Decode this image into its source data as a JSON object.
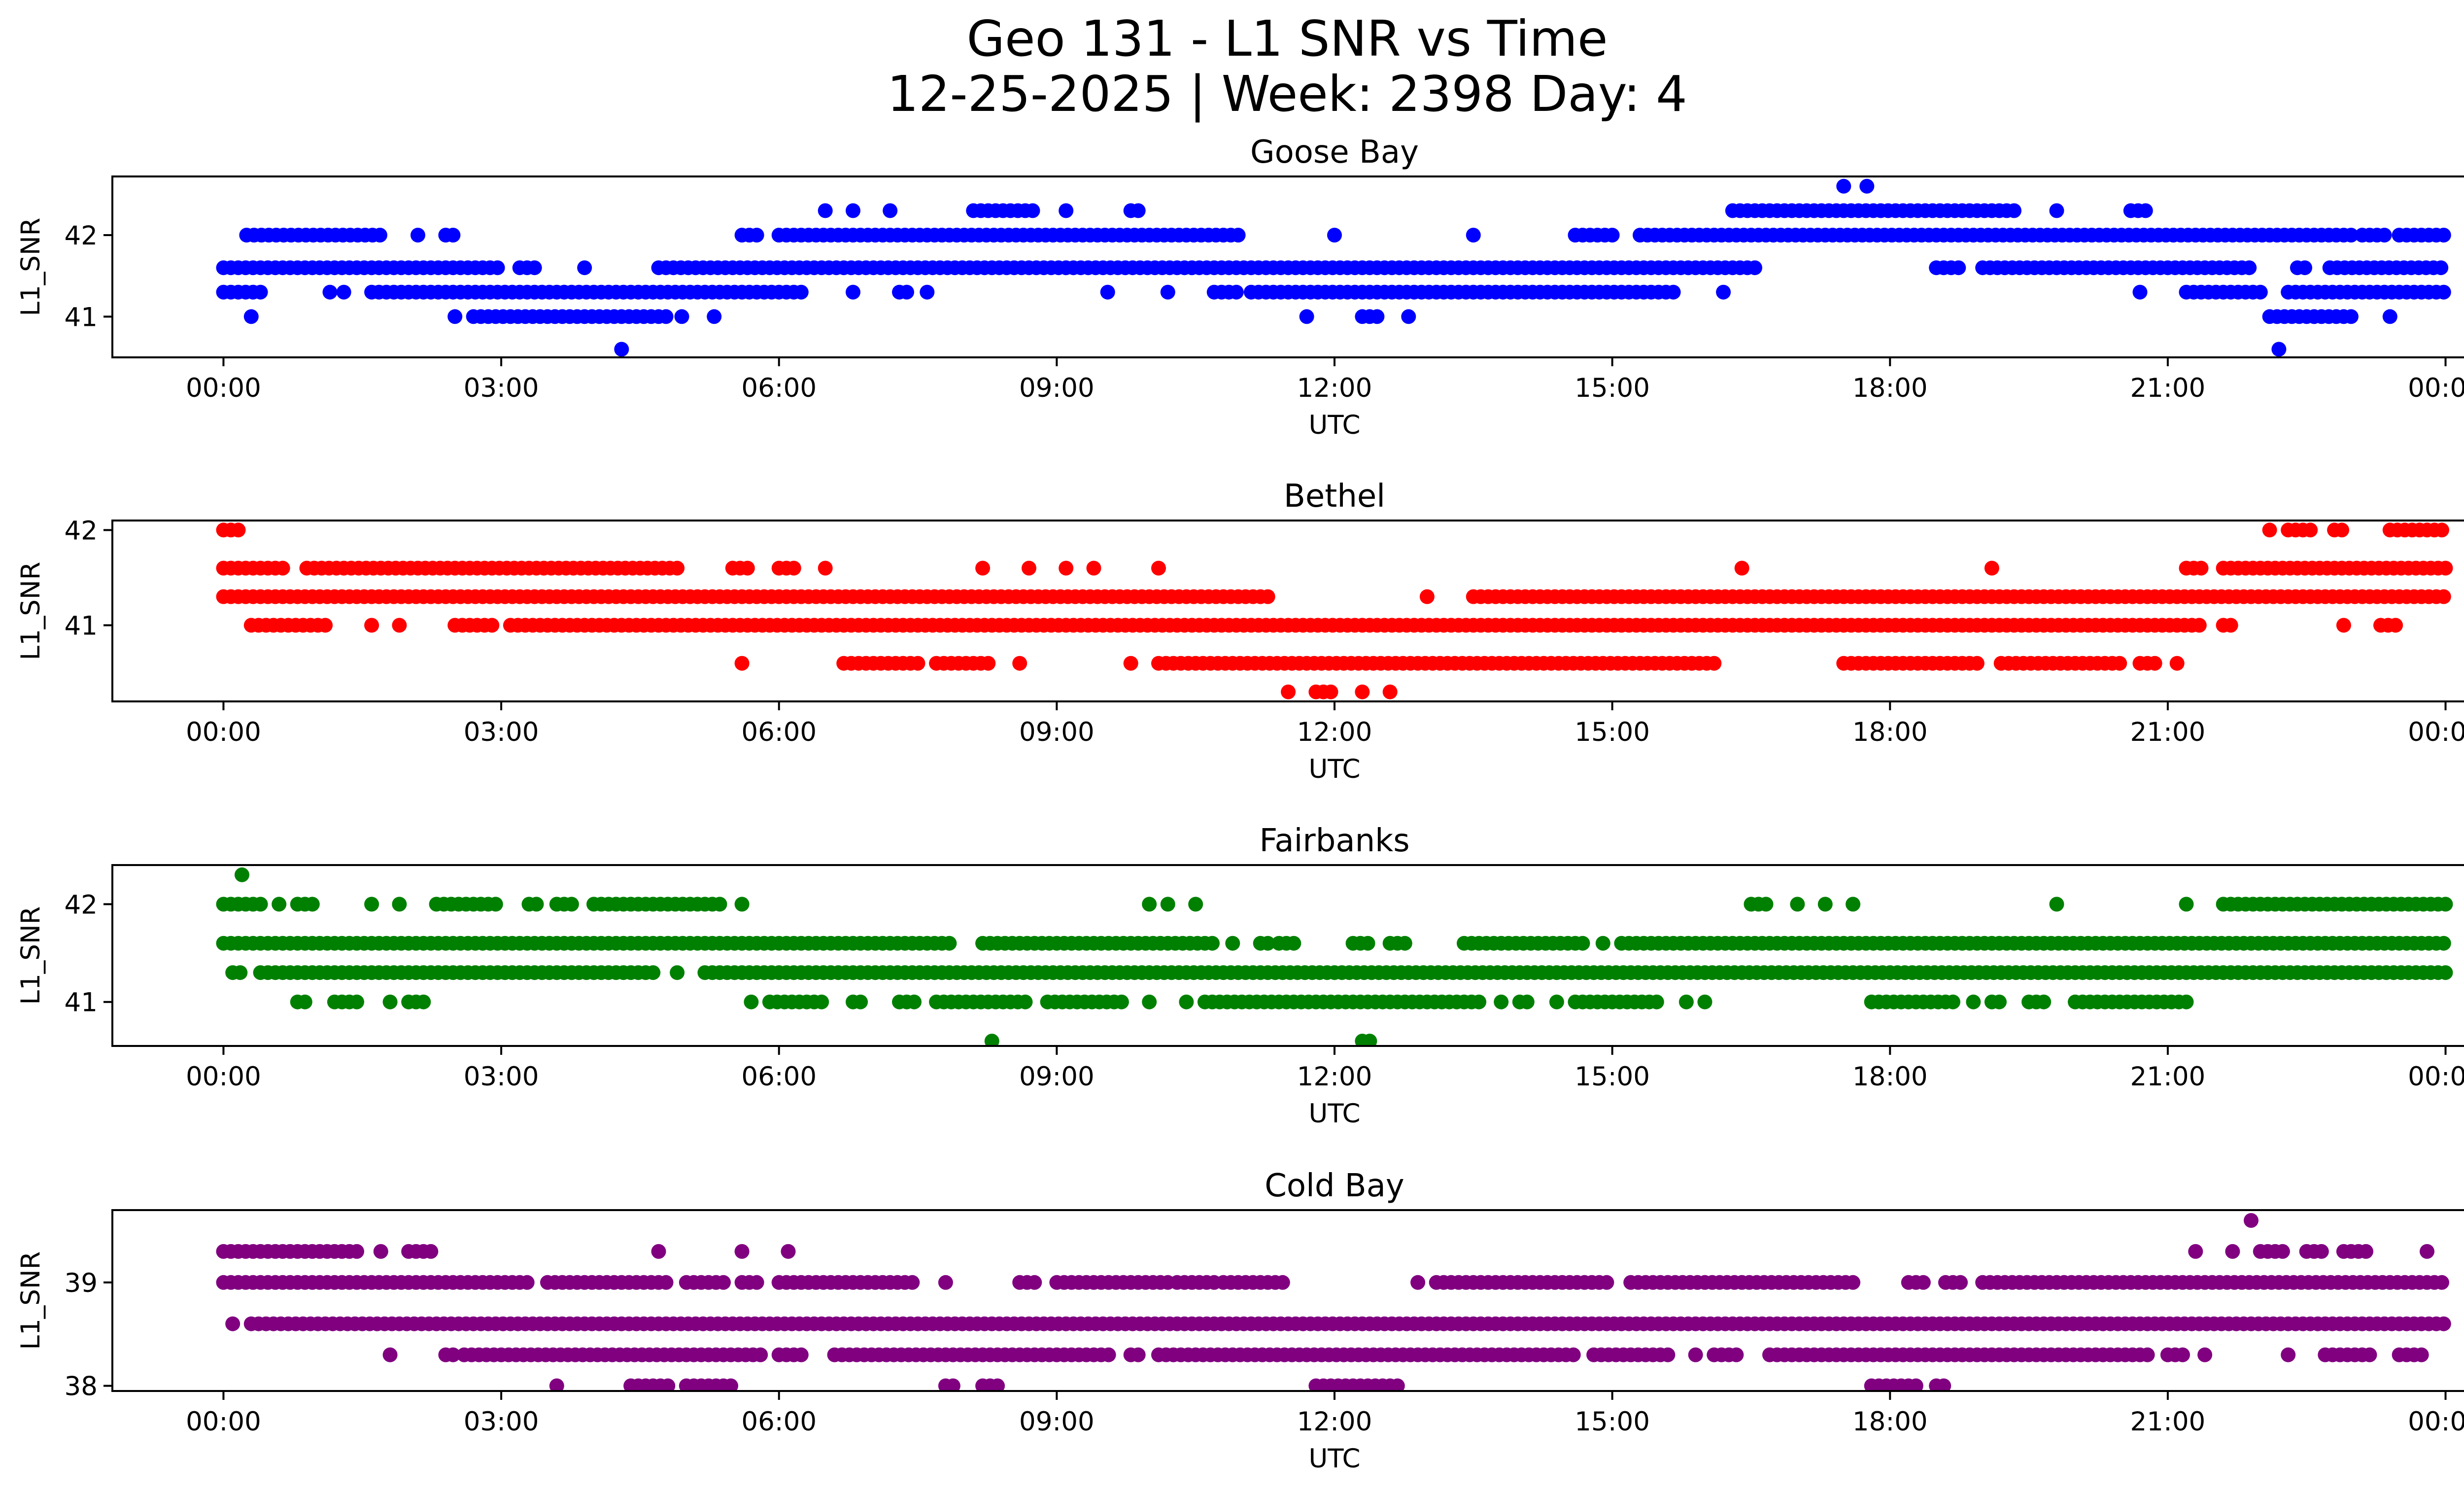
{
  "figure": {
    "title_line1": "Geo 131 - L1 SNR vs Time",
    "title_line2": "12-25-2025 | Week: 2398 Day: 4"
  },
  "chart_data": [
    {
      "type": "scatter",
      "title": "Goose Bay",
      "xlabel": "UTC",
      "ylabel": "L1_SNR",
      "color": "#0000ff",
      "x_unit": "hours UTC",
      "x_ticks": [
        "00:00",
        "03:00",
        "06:00",
        "09:00",
        "12:00",
        "15:00",
        "18:00",
        "21:00",
        "00:00"
      ],
      "y_ticks": [
        41,
        42
      ],
      "xlim": [
        -1.2,
        25.2
      ],
      "ylim": [
        40.5,
        42.72
      ],
      "levels": [
        {
          "y": 41.0,
          "segments": [
            [
              0.3,
              0.3
            ],
            [
              2.5,
              2.5
            ],
            [
              2.7,
              4.8
            ],
            [
              4.95,
              4.95
            ],
            [
              5.3,
              5.3
            ],
            [
              11.7,
              11.7
            ],
            [
              12.3,
              12.5
            ],
            [
              12.8,
              12.8
            ],
            [
              22.1,
              23.0
            ],
            [
              23.4,
              23.4
            ]
          ]
        },
        {
          "y": 41.3,
          "segments": [
            [
              0.0,
              0.4
            ],
            [
              1.15,
              1.15
            ],
            [
              1.3,
              1.3
            ],
            [
              1.6,
              6.3
            ],
            [
              6.8,
              6.8
            ],
            [
              7.3,
              7.4
            ],
            [
              7.6,
              7.6
            ],
            [
              9.55,
              9.55
            ],
            [
              10.2,
              10.2
            ],
            [
              10.7,
              11.0
            ],
            [
              11.1,
              15.7
            ],
            [
              16.2,
              16.2
            ],
            [
              20.7,
              20.7
            ],
            [
              21.2,
              22.0
            ],
            [
              22.3,
              24.0
            ]
          ]
        },
        {
          "y": 41.6,
          "segments": [
            [
              0.0,
              3.0
            ],
            [
              3.2,
              3.4
            ],
            [
              3.9,
              3.9
            ],
            [
              4.7,
              16.6
            ],
            [
              18.5,
              18.8
            ],
            [
              19.0,
              21.9
            ],
            [
              22.4,
              22.5
            ],
            [
              22.75,
              24.0
            ]
          ]
        },
        {
          "y": 42.0,
          "segments": [
            [
              0.25,
              1.7
            ],
            [
              2.1,
              2.1
            ],
            [
              2.4,
              2.55
            ],
            [
              5.6,
              5.8
            ],
            [
              6.0,
              11.0
            ],
            [
              12.0,
              12.0
            ],
            [
              13.5,
              13.5
            ],
            [
              14.6,
              15.0
            ],
            [
              15.3,
              23.0
            ],
            [
              23.1,
              23.4
            ],
            [
              23.5,
              24.0
            ]
          ]
        },
        {
          "y": 42.3,
          "segments": [
            [
              6.5,
              6.5
            ],
            [
              6.8,
              6.8
            ],
            [
              7.2,
              7.2
            ],
            [
              8.1,
              8.8
            ],
            [
              9.1,
              9.1
            ],
            [
              9.8,
              9.9
            ],
            [
              16.3,
              19.4
            ],
            [
              19.8,
              19.8
            ],
            [
              20.6,
              20.8
            ]
          ]
        },
        {
          "y": 42.6,
          "segments": [
            [
              17.5,
              17.5
            ],
            [
              17.75,
              17.75
            ]
          ]
        },
        {
          "y": 40.6,
          "segments": [
            [
              4.3,
              4.3
            ],
            [
              22.2,
              22.2
            ]
          ]
        }
      ]
    },
    {
      "type": "scatter",
      "title": "Bethel",
      "xlabel": "UTC",
      "ylabel": "L1_SNR",
      "color": "#ff0000",
      "x_unit": "hours UTC",
      "x_ticks": [
        "00:00",
        "03:00",
        "06:00",
        "09:00",
        "12:00",
        "15:00",
        "18:00",
        "21:00",
        "00:00"
      ],
      "y_ticks": [
        41,
        42
      ],
      "xlim": [
        -1.2,
        25.2
      ],
      "ylim": [
        40.2,
        42.1
      ],
      "levels": [
        {
          "y": 42.0,
          "segments": [
            [
              0.0,
              0.2
            ],
            [
              22.1,
              22.1
            ],
            [
              22.3,
              22.6
            ],
            [
              22.8,
              22.9
            ],
            [
              23.4,
              24.0
            ]
          ]
        },
        {
          "y": 41.6,
          "segments": [
            [
              0.0,
              0.7
            ],
            [
              0.9,
              4.9
            ],
            [
              5.5,
              5.7
            ],
            [
              6.0,
              6.2
            ],
            [
              6.5,
              6.5
            ],
            [
              8.2,
              8.2
            ],
            [
              8.7,
              8.7
            ],
            [
              9.1,
              9.1
            ],
            [
              9.4,
              9.4
            ],
            [
              10.1,
              10.1
            ],
            [
              16.4,
              16.4
            ],
            [
              19.1,
              19.1
            ],
            [
              21.2,
              21.4
            ],
            [
              21.6,
              24.0
            ]
          ]
        },
        {
          "y": 41.3,
          "segments": [
            [
              0.0,
              11.3
            ],
            [
              13.0,
              13.0
            ],
            [
              13.5,
              24.0
            ]
          ]
        },
        {
          "y": 41.0,
          "segments": [
            [
              0.3,
              1.1
            ],
            [
              1.6,
              1.6
            ],
            [
              1.9,
              1.9
            ],
            [
              2.5,
              2.9
            ],
            [
              3.1,
              21.4
            ],
            [
              21.6,
              21.7
            ],
            [
              22.9,
              22.9
            ],
            [
              23.3,
              23.5
            ]
          ]
        },
        {
          "y": 40.6,
          "segments": [
            [
              5.6,
              5.6
            ],
            [
              6.7,
              7.5
            ],
            [
              7.7,
              8.3
            ],
            [
              8.6,
              8.6
            ],
            [
              9.8,
              9.8
            ],
            [
              10.1,
              16.1
            ],
            [
              17.5,
              19.0
            ],
            [
              19.2,
              20.5
            ],
            [
              20.7,
              20.9
            ],
            [
              21.1,
              21.1
            ]
          ]
        },
        {
          "y": 40.3,
          "segments": [
            [
              11.5,
              11.5
            ],
            [
              11.8,
              12.0
            ],
            [
              12.3,
              12.3
            ],
            [
              12.6,
              12.6
            ]
          ]
        }
      ]
    },
    {
      "type": "scatter",
      "title": "Fairbanks",
      "xlabel": "UTC",
      "ylabel": "L1_SNR",
      "color": "#008000",
      "x_unit": "hours UTC",
      "x_ticks": [
        "00:00",
        "03:00",
        "06:00",
        "09:00",
        "12:00",
        "15:00",
        "18:00",
        "21:00",
        "00:00"
      ],
      "y_ticks": [
        41,
        42
      ],
      "xlim": [
        -1.2,
        25.2
      ],
      "ylim": [
        40.55,
        42.4
      ],
      "levels": [
        {
          "y": 42.3,
          "segments": [
            [
              0.2,
              0.2
            ]
          ]
        },
        {
          "y": 42.0,
          "segments": [
            [
              0.0,
              0.4
            ],
            [
              0.6,
              0.6
            ],
            [
              0.8,
              1.0
            ],
            [
              1.6,
              1.6
            ],
            [
              1.9,
              1.9
            ],
            [
              2.3,
              3.0
            ],
            [
              3.3,
              3.4
            ],
            [
              3.6,
              3.8
            ],
            [
              4.0,
              5.4
            ],
            [
              5.6,
              5.6
            ],
            [
              10.0,
              10.0
            ],
            [
              10.2,
              10.2
            ],
            [
              10.5,
              10.5
            ],
            [
              16.5,
              16.7
            ],
            [
              17.0,
              17.0
            ],
            [
              17.3,
              17.3
            ],
            [
              17.6,
              17.6
            ],
            [
              19.8,
              19.8
            ],
            [
              21.2,
              21.2
            ],
            [
              21.6,
              24.0
            ]
          ]
        },
        {
          "y": 41.6,
          "segments": [
            [
              0.0,
              7.9
            ],
            [
              8.2,
              10.7
            ],
            [
              10.9,
              10.9
            ],
            [
              11.2,
              11.3
            ],
            [
              11.4,
              11.6
            ],
            [
              12.2,
              12.4
            ],
            [
              12.6,
              12.8
            ],
            [
              13.4,
              14.7
            ],
            [
              14.9,
              14.9
            ],
            [
              15.1,
              24.0
            ]
          ]
        },
        {
          "y": 41.3,
          "segments": [
            [
              0.1,
              0.2
            ],
            [
              0.4,
              4.7
            ],
            [
              4.9,
              4.9
            ],
            [
              5.2,
              24.0
            ]
          ]
        },
        {
          "y": 41.0,
          "segments": [
            [
              0.8,
              0.9
            ],
            [
              1.2,
              1.5
            ],
            [
              1.8,
              1.8
            ],
            [
              2.0,
              2.2
            ],
            [
              5.7,
              5.7
            ],
            [
              5.9,
              6.5
            ],
            [
              6.8,
              6.9
            ],
            [
              7.3,
              7.5
            ],
            [
              7.7,
              8.7
            ],
            [
              8.9,
              9.7
            ],
            [
              10.0,
              10.0
            ],
            [
              10.4,
              10.4
            ],
            [
              10.6,
              13.6
            ],
            [
              13.8,
              13.8
            ],
            [
              14.0,
              14.1
            ],
            [
              14.4,
              14.4
            ],
            [
              14.6,
              15.5
            ],
            [
              15.8,
              15.8
            ],
            [
              16.0,
              16.0
            ],
            [
              17.8,
              18.7
            ],
            [
              18.9,
              18.9
            ],
            [
              19.1,
              19.2
            ],
            [
              19.5,
              19.7
            ],
            [
              20.0,
              21.2
            ]
          ]
        },
        {
          "y": 40.6,
          "segments": [
            [
              8.3,
              8.3
            ],
            [
              12.3,
              12.4
            ]
          ]
        }
      ]
    },
    {
      "type": "scatter",
      "title": "Cold Bay",
      "xlabel": "UTC",
      "ylabel": "L1_SNR",
      "color": "#800080",
      "x_unit": "hours UTC",
      "x_ticks": [
        "00:00",
        "03:00",
        "06:00",
        "09:00",
        "12:00",
        "15:00",
        "18:00",
        "21:00",
        "00:00"
      ],
      "y_ticks": [
        38,
        39
      ],
      "xlim": [
        -1.2,
        25.2
      ],
      "ylim": [
        37.95,
        39.7
      ],
      "levels": [
        {
          "y": 39.6,
          "segments": [
            [
              21.9,
              21.9
            ]
          ]
        },
        {
          "y": 39.3,
          "segments": [
            [
              0.0,
              1.5
            ],
            [
              1.7,
              1.7
            ],
            [
              2.0,
              2.3
            ],
            [
              4.7,
              4.7
            ],
            [
              5.6,
              5.6
            ],
            [
              6.1,
              6.1
            ],
            [
              21.3,
              21.3
            ],
            [
              21.7,
              21.7
            ],
            [
              22.0,
              22.3
            ],
            [
              22.5,
              22.7
            ],
            [
              22.9,
              23.2
            ],
            [
              23.8,
              23.8
            ]
          ]
        },
        {
          "y": 39.0,
          "segments": [
            [
              0.0,
              3.3
            ],
            [
              3.5,
              4.8
            ],
            [
              5.0,
              5.4
            ],
            [
              5.6,
              5.8
            ],
            [
              6.0,
              7.5
            ],
            [
              7.8,
              7.8
            ],
            [
              8.6,
              8.8
            ],
            [
              9.0,
              10.2
            ],
            [
              10.3,
              10.7
            ],
            [
              10.8,
              11.5
            ],
            [
              12.9,
              12.9
            ],
            [
              13.1,
              15.0
            ],
            [
              15.2,
              17.6
            ],
            [
              18.2,
              18.4
            ],
            [
              18.6,
              18.8
            ],
            [
              19.0,
              24.0
            ]
          ]
        },
        {
          "y": 38.6,
          "segments": [
            [
              0.1,
              0.1
            ],
            [
              0.3,
              24.0
            ]
          ]
        },
        {
          "y": 38.3,
          "segments": [
            [
              1.8,
              1.8
            ],
            [
              2.4,
              2.5
            ],
            [
              2.6,
              5.8
            ],
            [
              6.0,
              6.3
            ],
            [
              6.6,
              9.6
            ],
            [
              9.8,
              9.9
            ],
            [
              10.1,
              14.6
            ],
            [
              14.8,
              15.6
            ],
            [
              15.9,
              15.9
            ],
            [
              16.1,
              16.4
            ],
            [
              16.7,
              20.8
            ],
            [
              21.0,
              21.2
            ],
            [
              21.4,
              21.4
            ],
            [
              22.3,
              22.3
            ],
            [
              22.7,
              23.2
            ],
            [
              23.5,
              23.8
            ]
          ]
        },
        {
          "y": 38.0,
          "segments": [
            [
              3.6,
              3.6
            ],
            [
              4.4,
              4.8
            ],
            [
              5.0,
              5.5
            ],
            [
              7.8,
              7.9
            ],
            [
              8.2,
              8.4
            ],
            [
              11.8,
              12.7
            ],
            [
              17.8,
              18.3
            ],
            [
              18.5,
              18.6
            ]
          ]
        }
      ]
    }
  ]
}
